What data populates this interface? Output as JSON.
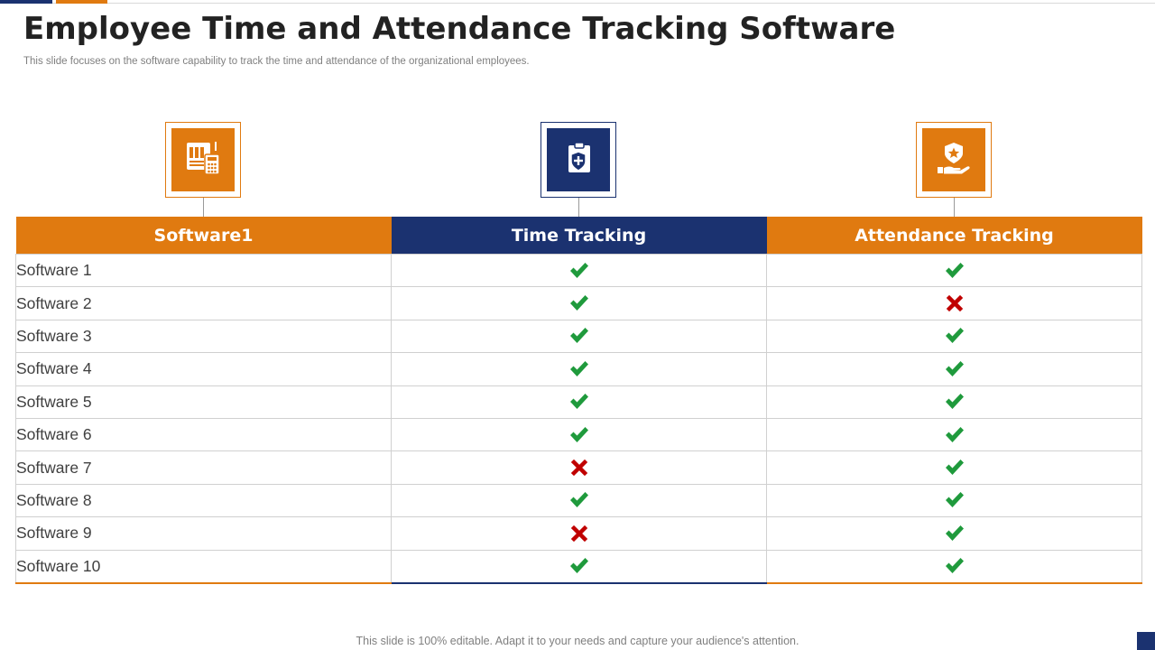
{
  "title": "Employee Time and Attendance Tracking Software",
  "subtitle": "This slide focuses on the software capability to track the time and attendance of the organizational employees.",
  "columns": [
    {
      "label": "Software1",
      "icon": "spreadsheet-calculator-icon",
      "color": "#e07a10"
    },
    {
      "label": "Time Tracking",
      "icon": "clipboard-shield-icon",
      "color": "#1b3270"
    },
    {
      "label": "Attendance Tracking",
      "icon": "hand-shield-star-icon",
      "color": "#e07a10"
    }
  ],
  "rows": [
    {
      "name": "Software 1",
      "time_tracking": true,
      "attendance_tracking": true
    },
    {
      "name": "Software 2",
      "time_tracking": true,
      "attendance_tracking": false
    },
    {
      "name": "Software 3",
      "time_tracking": true,
      "attendance_tracking": true
    },
    {
      "name": "Software 4",
      "time_tracking": true,
      "attendance_tracking": true
    },
    {
      "name": "Software 5",
      "time_tracking": true,
      "attendance_tracking": true
    },
    {
      "name": "Software 6",
      "time_tracking": true,
      "attendance_tracking": true
    },
    {
      "name": "Software 7",
      "time_tracking": false,
      "attendance_tracking": true
    },
    {
      "name": "Software 8",
      "time_tracking": true,
      "attendance_tracking": true
    },
    {
      "name": "Software 9",
      "time_tracking": false,
      "attendance_tracking": true
    },
    {
      "name": "Software 10",
      "time_tracking": true,
      "attendance_tracking": true
    }
  ],
  "marks": {
    "yes_color": "#1f9a3c",
    "no_color": "#c00000",
    "yes_icon": "check-icon",
    "no_icon": "cross-icon"
  },
  "footer": "This slide is 100% editable. Adapt it to your needs and capture your audience's attention."
}
